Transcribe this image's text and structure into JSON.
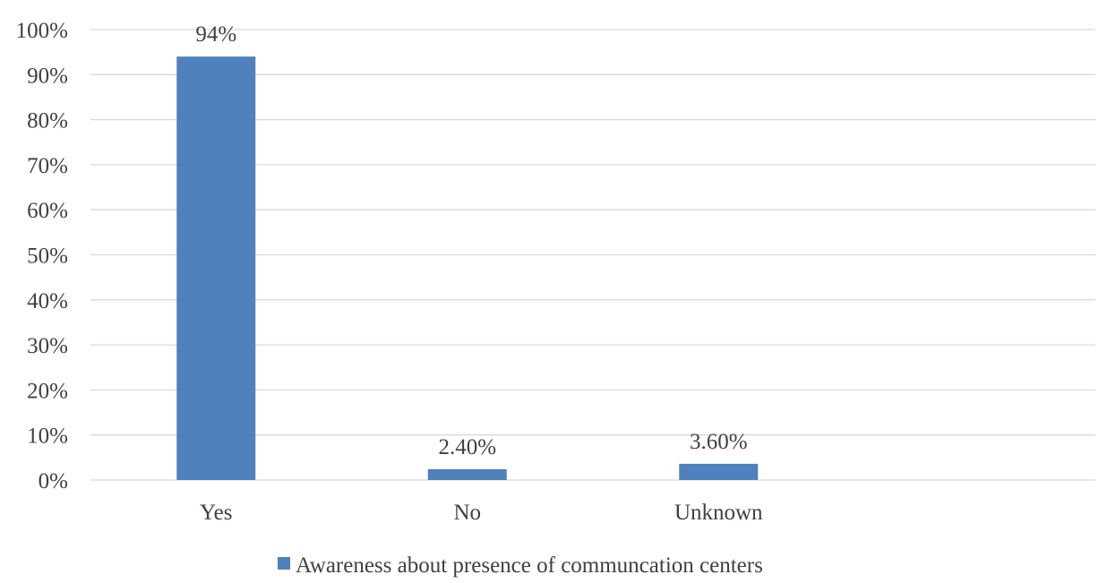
{
  "chart_data": {
    "type": "bar",
    "categories": [
      "Yes",
      "No",
      "Unknown",
      ""
    ],
    "series": [
      {
        "name": "Awareness about presence of communcation centers",
        "values": [
          0.94,
          0.024,
          0.036,
          null
        ],
        "data_labels": [
          "94%",
          "2.40%",
          "3.60%",
          ""
        ]
      }
    ],
    "ylim": [
      0,
      1
    ],
    "yticks": [
      0,
      0.1,
      0.2,
      0.3,
      0.4,
      0.5,
      0.6,
      0.7,
      0.8,
      0.9,
      1.0
    ],
    "ytick_labels": [
      "0%",
      "10%",
      "20%",
      "30%",
      "40%",
      "50%",
      "60%",
      "70%",
      "80%",
      "90%",
      "100%"
    ],
    "grid": true,
    "legend_position": "bottom",
    "colors": {
      "bar": "#4f81bd",
      "grid": "#d9d9d9",
      "text": "#404040"
    }
  }
}
